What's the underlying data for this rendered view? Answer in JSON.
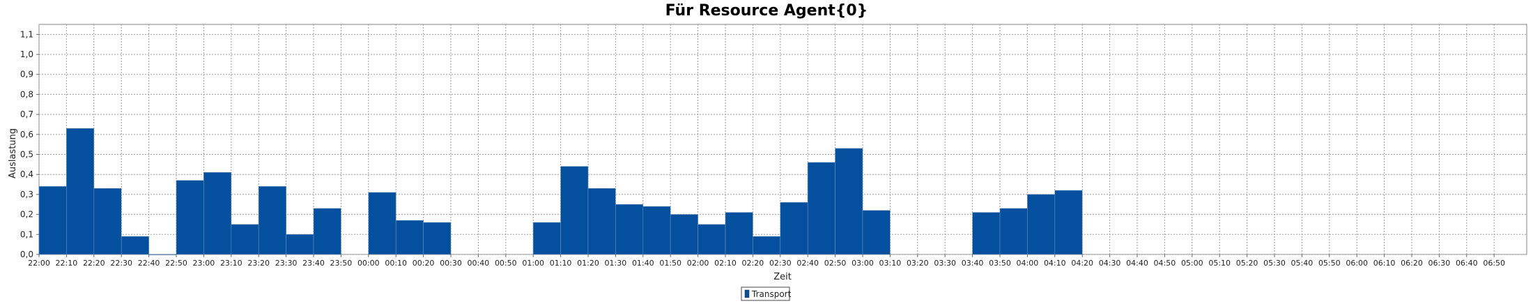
{
  "chart_data": {
    "type": "bar",
    "title": "Für Resource Agent{0}",
    "xlabel": "Zeit",
    "ylabel": "Auslastung",
    "ylim": [
      0,
      1.15
    ],
    "y_ticks": [
      "0,0",
      "0,1",
      "0,2",
      "0,3",
      "0,4",
      "0,5",
      "0,6",
      "0,7",
      "0,8",
      "0,9",
      "1,0",
      "1,1"
    ],
    "grid": true,
    "legend_position": "bottom-center",
    "color": "#04509E",
    "series": [
      {
        "name": "Transport"
      }
    ],
    "categories": [
      "22:00",
      "22:10",
      "22:20",
      "22:30",
      "22:40",
      "22:50",
      "23:00",
      "23:10",
      "23:20",
      "23:30",
      "23:40",
      "23:50",
      "00:00",
      "00:10",
      "00:20",
      "00:30",
      "00:40",
      "00:50",
      "01:00",
      "01:10",
      "01:20",
      "01:30",
      "01:40",
      "01:50",
      "02:00",
      "02:10",
      "02:20",
      "02:30",
      "02:40",
      "02:50",
      "03:00",
      "03:10",
      "03:20",
      "03:30",
      "03:40",
      "03:50",
      "04:00",
      "04:10",
      "04:20",
      "04:30",
      "04:40",
      "04:50",
      "05:00",
      "05:10",
      "05:20",
      "05:30",
      "05:40",
      "05:50",
      "06:00",
      "06:10",
      "06:20",
      "06:30",
      "06:40",
      "06:50"
    ],
    "values": [
      0.34,
      0.63,
      0.33,
      0.09,
      0.0,
      0.37,
      0.41,
      0.15,
      0.34,
      0.1,
      0.23,
      null,
      0.31,
      0.17,
      0.16,
      null,
      null,
      null,
      0.16,
      0.44,
      0.33,
      0.25,
      0.24,
      0.2,
      0.15,
      0.21,
      0.09,
      0.26,
      0.46,
      0.53,
      0.22,
      null,
      null,
      null,
      0.21,
      0.23,
      0.3,
      0.32,
      null,
      null,
      null,
      null,
      null,
      null,
      null,
      null,
      null,
      null,
      null,
      null,
      null,
      null,
      null,
      null
    ]
  }
}
